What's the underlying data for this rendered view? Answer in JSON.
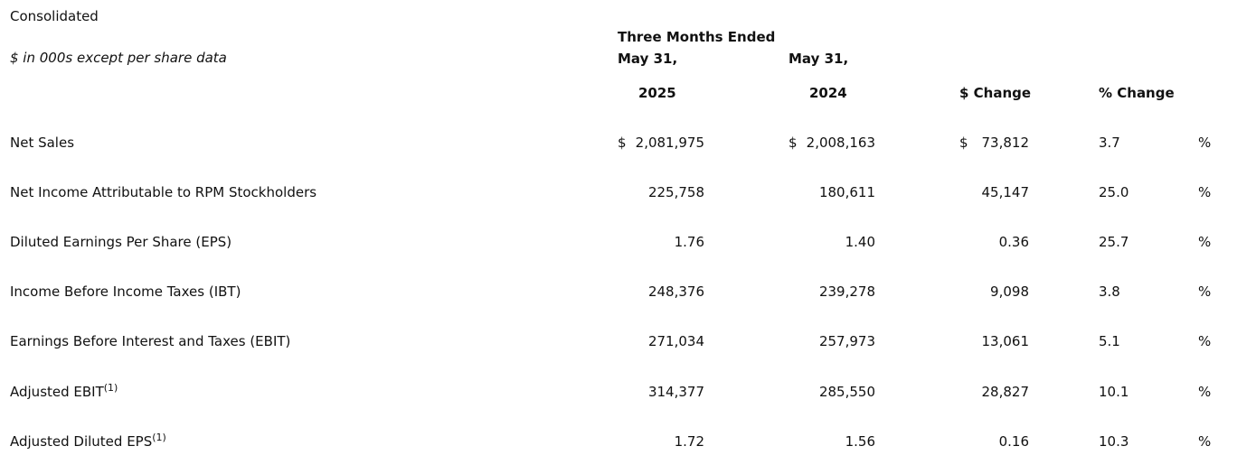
{
  "header": {
    "consolidated": "Consolidated",
    "units": "$ in 000s except per share data",
    "period_line1": "Three Months Ended",
    "period_line2_a": "May 31,",
    "period_line2_b": "May 31,",
    "col_2025": "2025",
    "col_2024": "2024",
    "col_change": "$ Change",
    "col_pct": "% Change"
  },
  "rows": [
    {
      "label": "Net Sales",
      "sup": "",
      "cur2025": "$",
      "v2025": "2,081,975",
      "cur2024": "$",
      "v2024": "2,008,163",
      "curChg": "$",
      "chg": "73,812",
      "pct": "3.7",
      "pctSign": "%"
    },
    {
      "label": "Net Income Attributable to RPM Stockholders",
      "sup": "",
      "cur2025": "",
      "v2025": "225,758",
      "cur2024": "",
      "v2024": "180,611",
      "curChg": "",
      "chg": "45,147",
      "pct": "25.0",
      "pctSign": "%"
    },
    {
      "label": "Diluted Earnings Per Share (EPS)",
      "sup": "",
      "cur2025": "",
      "v2025": "1.76",
      "cur2024": "",
      "v2024": "1.40",
      "curChg": "",
      "chg": "0.36",
      "pct": "25.7",
      "pctSign": "%"
    },
    {
      "label": "Income Before Income Taxes (IBT)",
      "sup": "",
      "cur2025": "",
      "v2025": "248,376",
      "cur2024": "",
      "v2024": "239,278",
      "curChg": "",
      "chg": "9,098",
      "pct": "3.8",
      "pctSign": "%"
    },
    {
      "label": "Earnings Before Interest and Taxes (EBIT)",
      "sup": "",
      "cur2025": "",
      "v2025": "271,034",
      "cur2024": "",
      "v2024": "257,973",
      "curChg": "",
      "chg": "13,061",
      "pct": "5.1",
      "pctSign": "%"
    },
    {
      "label": "Adjusted EBIT",
      "sup": "(1)",
      "cur2025": "",
      "v2025": "314,377",
      "cur2024": "",
      "v2024": "285,550",
      "curChg": "",
      "chg": "28,827",
      "pct": "10.1",
      "pctSign": "%"
    },
    {
      "label": "Adjusted Diluted EPS",
      "sup": "(1)",
      "cur2025": "",
      "v2025": "1.72",
      "cur2024": "",
      "v2024": "1.56",
      "curChg": "",
      "chg": "0.16",
      "pct": "10.3",
      "pctSign": "%"
    }
  ]
}
